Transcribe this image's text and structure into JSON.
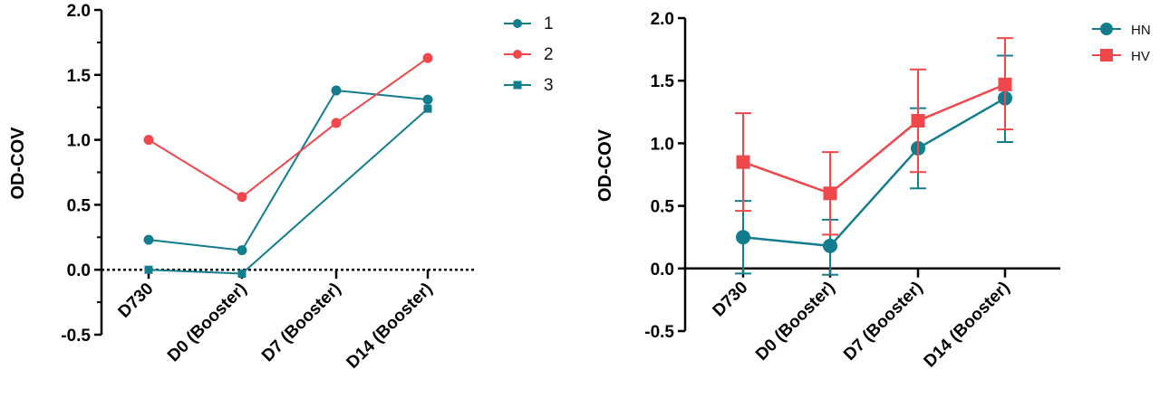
{
  "colors": {
    "teal": "#127D8C",
    "red": "#F0474C",
    "axis": "#000000"
  },
  "chart_data": [
    {
      "type": "line",
      "ylabel": "OD-COV",
      "ylim": [
        -0.5,
        2.0
      ],
      "yticks": [
        "2.0",
        "1.5",
        "1.0",
        "0.5",
        "0.0",
        "-0.5"
      ],
      "ytick_values": [
        2.0,
        1.5,
        1.0,
        0.5,
        0.0,
        -0.5
      ],
      "categories": [
        "D730",
        "D0 (Booster)",
        "D7 (Booster)",
        "D14 (Booster)"
      ],
      "legend_position": "top-right",
      "series": [
        {
          "name": "1",
          "color": "teal",
          "marker": "circle",
          "values": [
            0.23,
            0.15,
            1.38,
            1.31
          ]
        },
        {
          "name": "2",
          "color": "red",
          "marker": "circle",
          "values": [
            1.0,
            0.56,
            1.13,
            1.63
          ]
        },
        {
          "name": "3",
          "color": "teal",
          "marker": "square",
          "values": [
            0.0,
            -0.03,
            null,
            1.24
          ]
        }
      ]
    },
    {
      "type": "line",
      "ylabel": "OD-COV",
      "ylim": [
        -0.5,
        2.0
      ],
      "yticks": [
        "2.0",
        "1.5",
        "1.0",
        "0.5",
        "0.0",
        "-0.5"
      ],
      "ytick_values": [
        2.0,
        1.5,
        1.0,
        0.5,
        0.0,
        -0.5
      ],
      "categories": [
        "D730",
        "D0 (Booster)",
        "D7 (Booster)",
        "D14 (Booster)"
      ],
      "legend_position": "top-right",
      "series": [
        {
          "name": "HN",
          "color": "teal",
          "marker": "circle",
          "values": [
            0.25,
            0.18,
            0.96,
            1.36
          ],
          "err_low": [
            0.29,
            0.23,
            0.32,
            0.35
          ],
          "err_high": [
            0.29,
            0.21,
            0.32,
            0.34
          ]
        },
        {
          "name": "HV",
          "color": "red",
          "marker": "square",
          "values": [
            0.85,
            0.6,
            1.18,
            1.47
          ],
          "err_low": [
            0.39,
            0.33,
            0.41,
            0.36
          ],
          "err_high": [
            0.39,
            0.33,
            0.41,
            0.37
          ]
        }
      ]
    }
  ]
}
